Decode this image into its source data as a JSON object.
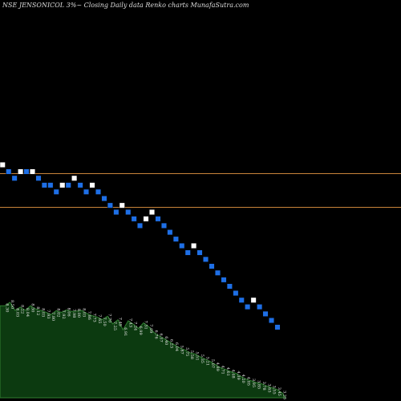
{
  "header": {
    "title": "NSE JENSONICOL  3%~  Closing Daily data  Renko  charts MunafaSutra.com"
  },
  "chart_data": {
    "type": "renko",
    "brick_size": "3%",
    "colors": {
      "up": "#ffffff",
      "down": "#1e6fe6",
      "hline": "#c8843a",
      "area_fill": "#0c3a10",
      "area_edge": "#2f7d2f"
    },
    "reference_lines": [
      8.3,
      7.41
    ],
    "bricks": [
      {
        "v": 8.03,
        "d": "up"
      },
      {
        "v": 7.79,
        "d": "down"
      },
      {
        "v": 7.56,
        "d": "down"
      },
      {
        "v": 7.79,
        "d": "up"
      },
      {
        "v": 7.79,
        "d": "down"
      },
      {
        "v": 7.79,
        "d": "up"
      },
      {
        "v": 7.56,
        "d": "down"
      },
      {
        "v": 7.33,
        "d": "down"
      },
      {
        "v": 7.33,
        "d": "down"
      },
      {
        "v": 7.11,
        "d": "down"
      },
      {
        "v": 7.33,
        "d": "up"
      },
      {
        "v": 7.33,
        "d": "down"
      },
      {
        "v": 7.56,
        "d": "up"
      },
      {
        "v": 7.33,
        "d": "down"
      },
      {
        "v": 7.11,
        "d": "down"
      },
      {
        "v": 7.33,
        "d": "up"
      },
      {
        "v": 7.11,
        "d": "down"
      },
      {
        "v": 6.9,
        "d": "down"
      },
      {
        "v": 6.69,
        "d": "down"
      },
      {
        "v": 6.49,
        "d": "down"
      },
      {
        "v": 6.69,
        "d": "up"
      },
      {
        "v": 6.49,
        "d": "down"
      },
      {
        "v": 6.3,
        "d": "down"
      },
      {
        "v": 6.11,
        "d": "down"
      },
      {
        "v": 6.3,
        "d": "up"
      },
      {
        "v": 6.49,
        "d": "up"
      },
      {
        "v": 6.3,
        "d": "down"
      },
      {
        "v": 6.11,
        "d": "down"
      },
      {
        "v": 5.93,
        "d": "down"
      },
      {
        "v": 5.75,
        "d": "down"
      },
      {
        "v": 5.58,
        "d": "down"
      },
      {
        "v": 5.41,
        "d": "down"
      },
      {
        "v": 5.58,
        "d": "up"
      },
      {
        "v": 5.41,
        "d": "down"
      },
      {
        "v": 5.25,
        "d": "down"
      },
      {
        "v": 5.09,
        "d": "down"
      },
      {
        "v": 4.94,
        "d": "down"
      },
      {
        "v": 4.79,
        "d": "down"
      },
      {
        "v": 4.65,
        "d": "down"
      },
      {
        "v": 4.51,
        "d": "down"
      },
      {
        "v": 4.37,
        "d": "down"
      },
      {
        "v": 4.24,
        "d": "down"
      },
      {
        "v": 4.37,
        "d": "up"
      },
      {
        "v": 4.24,
        "d": "down"
      },
      {
        "v": 4.11,
        "d": "down"
      },
      {
        "v": 3.99,
        "d": "down"
      },
      {
        "v": 3.87,
        "d": "down"
      }
    ],
    "value_labels": [
      "8.30",
      "8.50",
      "8.03",
      "8.22",
      "8.04",
      "8.30",
      "8.12",
      "8.03",
      "7.93",
      "7.80",
      "8.02",
      "7.92",
      "8.06",
      "7.98",
      "8.00",
      "8.03",
      "7.86",
      "7.73",
      "7.65",
      "7.50",
      "7.70",
      "7.25",
      "7.49",
      "6.91",
      "7.43",
      "7.24",
      "6.99",
      "7.31",
      "7.09",
      "6.76",
      "6.57",
      "6.40",
      "6.23",
      "6.04",
      "5.87",
      "5.75",
      "5.58",
      "5.51",
      "5.35",
      "5.21",
      "5.07",
      "4.89",
      "4.71",
      "4.61",
      "4.48",
      "4.39",
      "4.20",
      "4.05",
      "3.95",
      "3.85",
      "3.78",
      "3.65",
      "3.55",
      "3.45",
      "3.25"
    ]
  }
}
